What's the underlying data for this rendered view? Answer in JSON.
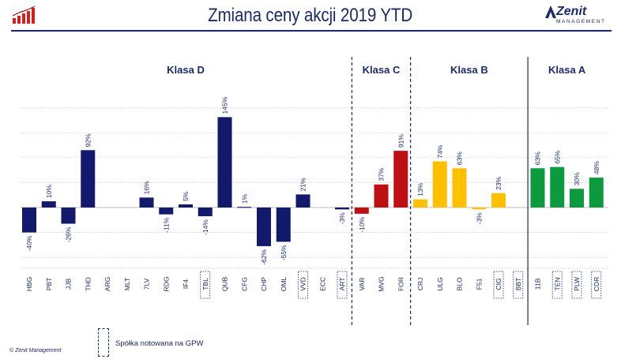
{
  "page": {
    "title": "Zmiana ceny akcji 2019 YTD",
    "brand": "Zenit",
    "brand_sub": "MANAGEMENT",
    "legend_label": "Spółka notowana na GPW",
    "footer": "© Zenit Management"
  },
  "chart_data": {
    "type": "bar",
    "ylim": [
      -80,
      160
    ],
    "grid": true,
    "value_format": "percent",
    "groups": [
      {
        "label": "Klasa D",
        "color": "#13196b",
        "start": 0,
        "end": 16
      },
      {
        "label": "Klasa C",
        "color": "#c00f12",
        "start": 17,
        "end": 19
      },
      {
        "label": "Klasa B",
        "color": "#ffc000",
        "start": 20,
        "end": 25
      },
      {
        "label": "Klasa A",
        "color": "#0c9a3f",
        "start": 26,
        "end": 29
      }
    ],
    "categories": [
      "HBG",
      "PBT",
      "JJB",
      "THD",
      "ARG",
      "MLT",
      "7LV",
      "RDG",
      "IF4",
      "TBL",
      "QUB",
      "CFG",
      "CHP",
      "OML",
      "VVD",
      "ECC",
      "ART",
      "VAR",
      "MVG",
      "FOR",
      "CRJ",
      "ULG",
      "BLO",
      "F51",
      "CIG",
      "BBT",
      "11B",
      "TEN",
      "PLW",
      "CDR"
    ],
    "values": [
      -40,
      10,
      -26,
      92,
      null,
      null,
      16,
      -11,
      5,
      -14,
      145,
      1,
      -62,
      -55,
      21,
      null,
      -3,
      -10,
      37,
      91,
      13,
      74,
      63,
      -3,
      23,
      null,
      63,
      65,
      30,
      48
    ],
    "labels": [
      "-40%",
      "10%",
      "-26%",
      "92%",
      "",
      "",
      "16%",
      "-11%",
      "5%",
      "-14%",
      "145%",
      "1%",
      "-62%",
      "-55%",
      "21%",
      "",
      "-3%",
      "-10%",
      "37%",
      "91%",
      "13%",
      "74%",
      "63%",
      "-3%",
      "23%",
      "",
      "63%",
      "65%",
      "30%",
      "48%"
    ],
    "gpw_listed": [
      "TBL",
      "VVD",
      "ART",
      "CIG",
      "BBT",
      "TEN",
      "PLW",
      "CDR"
    ]
  },
  "colors": {
    "navy": "#1b2a6b",
    "grid": "#bfc4d8"
  }
}
